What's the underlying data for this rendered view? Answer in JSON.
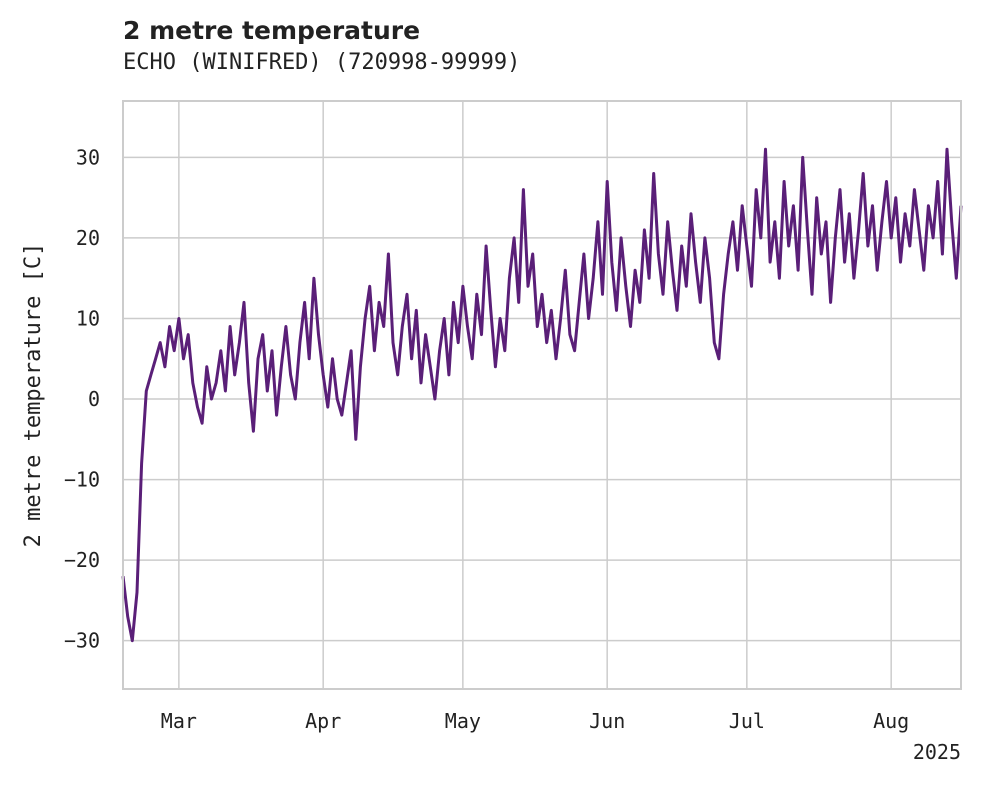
{
  "chart_data": {
    "type": "line",
    "title": "2 metre temperature",
    "subtitle": "ECHO (WINIFRED) (720998-99999)",
    "xlabel": "",
    "ylabel": "2 metre temperature [C]",
    "x_tick_labels": [
      "Mar",
      "Apr",
      "May",
      "Jun",
      "Jul",
      "Aug"
    ],
    "x_offset_label": "2025",
    "y_ticks": [
      30,
      20,
      10,
      0,
      -10,
      -20,
      -30
    ],
    "y_tick_labels": [
      "30",
      "20",
      "10",
      "0",
      "−10",
      "−20",
      "−30"
    ],
    "xlim": [
      "2025-02-17",
      "2025-08-16"
    ],
    "ylim": [
      -36,
      37
    ],
    "grid": true,
    "line_color": "#5a1f78",
    "series": [
      {
        "values": [
          [
            "2025-02-17",
            -22
          ],
          [
            "2025-02-18",
            -27
          ],
          [
            "2025-02-19",
            -30
          ],
          [
            "2025-02-20",
            -24
          ],
          [
            "2025-02-21",
            -8
          ],
          [
            "2025-02-22",
            1
          ],
          [
            "2025-02-23",
            3
          ],
          [
            "2025-02-24",
            5
          ],
          [
            "2025-02-25",
            7
          ],
          [
            "2025-02-26",
            4
          ],
          [
            "2025-02-27",
            9
          ],
          [
            "2025-02-28",
            6
          ],
          [
            "2025-03-01",
            10
          ],
          [
            "2025-03-02",
            5
          ],
          [
            "2025-03-03",
            8
          ],
          [
            "2025-03-04",
            2
          ],
          [
            "2025-03-05",
            -1
          ],
          [
            "2025-03-06",
            -3
          ],
          [
            "2025-03-07",
            4
          ],
          [
            "2025-03-08",
            0
          ],
          [
            "2025-03-09",
            2
          ],
          [
            "2025-03-10",
            6
          ],
          [
            "2025-03-11",
            1
          ],
          [
            "2025-03-12",
            9
          ],
          [
            "2025-03-13",
            3
          ],
          [
            "2025-03-14",
            7
          ],
          [
            "2025-03-15",
            12
          ],
          [
            "2025-03-16",
            2
          ],
          [
            "2025-03-17",
            -4
          ],
          [
            "2025-03-18",
            5
          ],
          [
            "2025-03-19",
            8
          ],
          [
            "2025-03-20",
            1
          ],
          [
            "2025-03-21",
            6
          ],
          [
            "2025-03-22",
            -2
          ],
          [
            "2025-03-23",
            4
          ],
          [
            "2025-03-24",
            9
          ],
          [
            "2025-03-25",
            3
          ],
          [
            "2025-03-26",
            0
          ],
          [
            "2025-03-27",
            7
          ],
          [
            "2025-03-28",
            12
          ],
          [
            "2025-03-29",
            5
          ],
          [
            "2025-03-30",
            15
          ],
          [
            "2025-03-31",
            8
          ],
          [
            "2025-04-01",
            3
          ],
          [
            "2025-04-02",
            -1
          ],
          [
            "2025-04-03",
            5
          ],
          [
            "2025-04-04",
            0
          ],
          [
            "2025-04-05",
            -2
          ],
          [
            "2025-04-06",
            2
          ],
          [
            "2025-04-07",
            6
          ],
          [
            "2025-04-08",
            -5
          ],
          [
            "2025-04-09",
            4
          ],
          [
            "2025-04-10",
            10
          ],
          [
            "2025-04-11",
            14
          ],
          [
            "2025-04-12",
            6
          ],
          [
            "2025-04-13",
            12
          ],
          [
            "2025-04-14",
            9
          ],
          [
            "2025-04-15",
            18
          ],
          [
            "2025-04-16",
            7
          ],
          [
            "2025-04-17",
            3
          ],
          [
            "2025-04-18",
            9
          ],
          [
            "2025-04-19",
            13
          ],
          [
            "2025-04-20",
            5
          ],
          [
            "2025-04-21",
            11
          ],
          [
            "2025-04-22",
            2
          ],
          [
            "2025-04-23",
            8
          ],
          [
            "2025-04-24",
            4
          ],
          [
            "2025-04-25",
            0
          ],
          [
            "2025-04-26",
            6
          ],
          [
            "2025-04-27",
            10
          ],
          [
            "2025-04-28",
            3
          ],
          [
            "2025-04-29",
            12
          ],
          [
            "2025-04-30",
            7
          ],
          [
            "2025-05-01",
            14
          ],
          [
            "2025-05-02",
            9
          ],
          [
            "2025-05-03",
            5
          ],
          [
            "2025-05-04",
            13
          ],
          [
            "2025-05-05",
            8
          ],
          [
            "2025-05-06",
            19
          ],
          [
            "2025-05-07",
            11
          ],
          [
            "2025-05-08",
            4
          ],
          [
            "2025-05-09",
            10
          ],
          [
            "2025-05-10",
            6
          ],
          [
            "2025-05-11",
            15
          ],
          [
            "2025-05-12",
            20
          ],
          [
            "2025-05-13",
            12
          ],
          [
            "2025-05-14",
            26
          ],
          [
            "2025-05-15",
            14
          ],
          [
            "2025-05-16",
            18
          ],
          [
            "2025-05-17",
            9
          ],
          [
            "2025-05-18",
            13
          ],
          [
            "2025-05-19",
            7
          ],
          [
            "2025-05-20",
            11
          ],
          [
            "2025-05-21",
            5
          ],
          [
            "2025-05-22",
            10
          ],
          [
            "2025-05-23",
            16
          ],
          [
            "2025-05-24",
            8
          ],
          [
            "2025-05-25",
            6
          ],
          [
            "2025-05-26",
            12
          ],
          [
            "2025-05-27",
            18
          ],
          [
            "2025-05-28",
            10
          ],
          [
            "2025-05-29",
            15
          ],
          [
            "2025-05-30",
            22
          ],
          [
            "2025-05-31",
            13
          ],
          [
            "2025-06-01",
            27
          ],
          [
            "2025-06-02",
            17
          ],
          [
            "2025-06-03",
            11
          ],
          [
            "2025-06-04",
            20
          ],
          [
            "2025-06-05",
            14
          ],
          [
            "2025-06-06",
            9
          ],
          [
            "2025-06-07",
            16
          ],
          [
            "2025-06-08",
            12
          ],
          [
            "2025-06-09",
            21
          ],
          [
            "2025-06-10",
            15
          ],
          [
            "2025-06-11",
            28
          ],
          [
            "2025-06-12",
            18
          ],
          [
            "2025-06-13",
            13
          ],
          [
            "2025-06-14",
            22
          ],
          [
            "2025-06-15",
            16
          ],
          [
            "2025-06-16",
            11
          ],
          [
            "2025-06-17",
            19
          ],
          [
            "2025-06-18",
            14
          ],
          [
            "2025-06-19",
            23
          ],
          [
            "2025-06-20",
            17
          ],
          [
            "2025-06-21",
            12
          ],
          [
            "2025-06-22",
            20
          ],
          [
            "2025-06-23",
            15
          ],
          [
            "2025-06-24",
            7
          ],
          [
            "2025-06-25",
            5
          ],
          [
            "2025-06-26",
            13
          ],
          [
            "2025-06-27",
            18
          ],
          [
            "2025-06-28",
            22
          ],
          [
            "2025-06-29",
            16
          ],
          [
            "2025-06-30",
            24
          ],
          [
            "2025-07-01",
            19
          ],
          [
            "2025-07-02",
            14
          ],
          [
            "2025-07-03",
            26
          ],
          [
            "2025-07-04",
            20
          ],
          [
            "2025-07-05",
            31
          ],
          [
            "2025-07-06",
            17
          ],
          [
            "2025-07-07",
            22
          ],
          [
            "2025-07-08",
            15
          ],
          [
            "2025-07-09",
            27
          ],
          [
            "2025-07-10",
            19
          ],
          [
            "2025-07-11",
            24
          ],
          [
            "2025-07-12",
            16
          ],
          [
            "2025-07-13",
            30
          ],
          [
            "2025-07-14",
            21
          ],
          [
            "2025-07-15",
            13
          ],
          [
            "2025-07-16",
            25
          ],
          [
            "2025-07-17",
            18
          ],
          [
            "2025-07-18",
            22
          ],
          [
            "2025-07-19",
            12
          ],
          [
            "2025-07-20",
            20
          ],
          [
            "2025-07-21",
            26
          ],
          [
            "2025-07-22",
            17
          ],
          [
            "2025-07-23",
            23
          ],
          [
            "2025-07-24",
            15
          ],
          [
            "2025-07-25",
            21
          ],
          [
            "2025-07-26",
            28
          ],
          [
            "2025-07-27",
            19
          ],
          [
            "2025-07-28",
            24
          ],
          [
            "2025-07-29",
            16
          ],
          [
            "2025-07-30",
            22
          ],
          [
            "2025-07-31",
            27
          ],
          [
            "2025-08-01",
            20
          ],
          [
            "2025-08-02",
            25
          ],
          [
            "2025-08-03",
            17
          ],
          [
            "2025-08-04",
            23
          ],
          [
            "2025-08-05",
            19
          ],
          [
            "2025-08-06",
            26
          ],
          [
            "2025-08-07",
            21
          ],
          [
            "2025-08-08",
            16
          ],
          [
            "2025-08-09",
            24
          ],
          [
            "2025-08-10",
            20
          ],
          [
            "2025-08-11",
            27
          ],
          [
            "2025-08-12",
            18
          ],
          [
            "2025-08-13",
            31
          ],
          [
            "2025-08-14",
            22
          ],
          [
            "2025-08-15",
            15
          ],
          [
            "2025-08-16",
            24
          ]
        ]
      }
    ]
  }
}
